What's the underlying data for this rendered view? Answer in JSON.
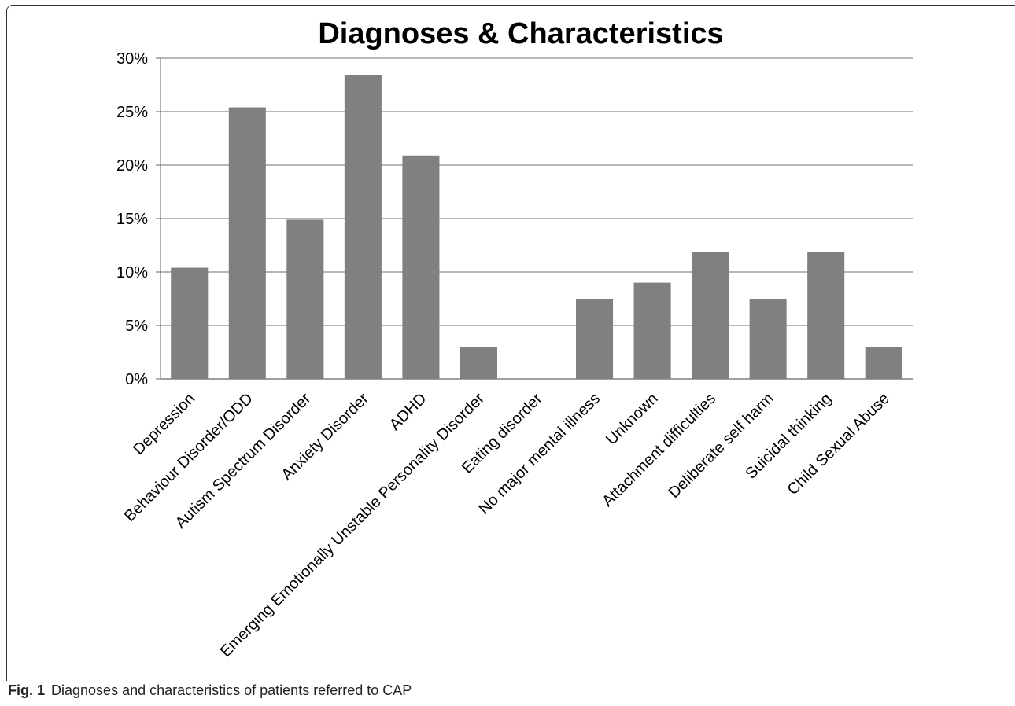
{
  "chart_data": {
    "type": "bar",
    "title": "Diagnoses & Characteristics",
    "xlabel": "",
    "ylabel": "",
    "categories": [
      "Depression",
      "Behaviour Disorder/ODD",
      "Autism Spectrum Disorder",
      "Anxiety Disorder",
      "ADHD",
      "Emerging Emotionally Unstable Personality Disorder",
      "Eating disorder",
      "No major mental illness",
      "Unknown",
      "Attachment difficulties",
      "Deliberate self harm",
      "Suicidal thinking",
      "Child Sexual Abuse"
    ],
    "values": [
      10.4,
      25.4,
      14.9,
      28.4,
      20.9,
      3.0,
      0,
      7.5,
      9.0,
      11.9,
      7.5,
      11.9,
      3.0
    ],
    "ylim": [
      0,
      30
    ],
    "yticks": [
      "0%",
      "5%",
      "10%",
      "15%",
      "20%",
      "25%",
      "30%"
    ],
    "grid": true,
    "legend": "none",
    "bar_color": "#808080",
    "grid_color": "#8c8c8c"
  },
  "caption": {
    "label": "Fig. 1",
    "text": "Diagnoses and characteristics of patients referred to CAP"
  }
}
